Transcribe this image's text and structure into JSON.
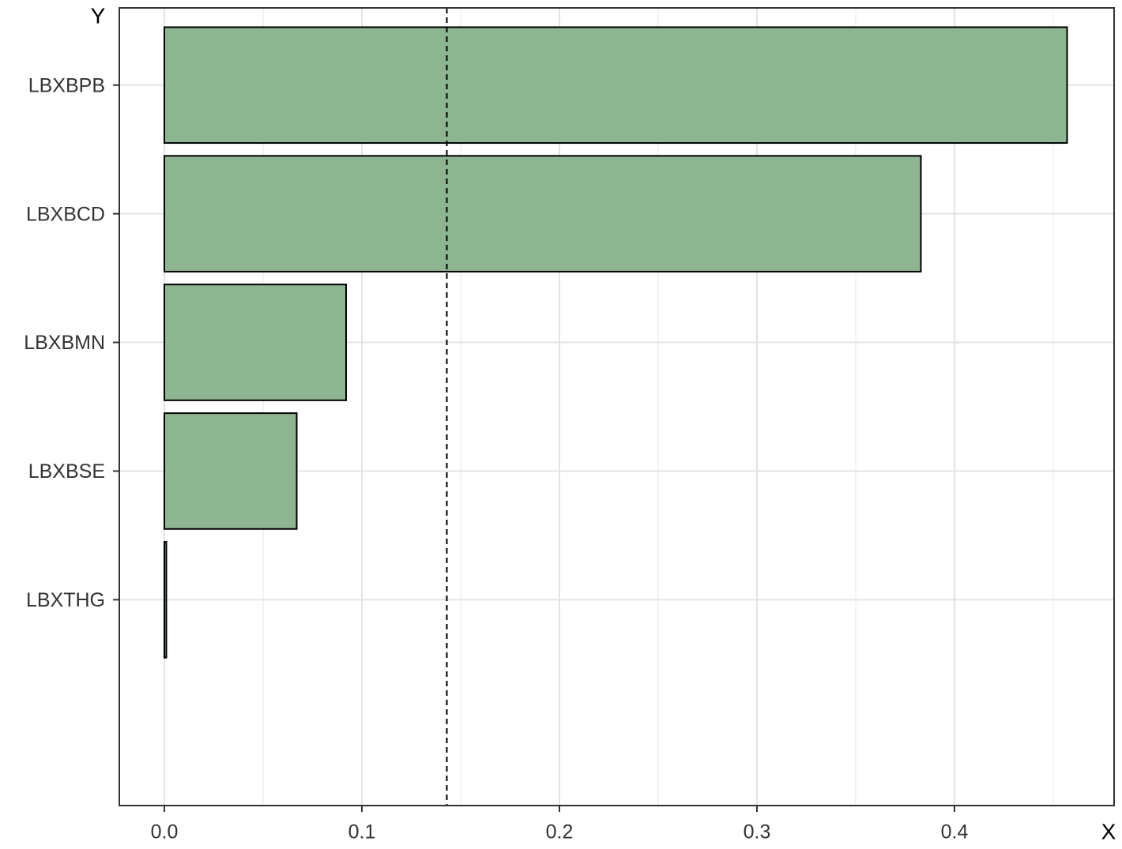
{
  "chart_data": {
    "type": "bar",
    "orientation": "horizontal",
    "x_label": "X",
    "y_label": "Y",
    "categories": [
      "LBXBPB",
      "LBXBCD",
      "LBXBMN",
      "LBXBSE",
      "LBXTHG"
    ],
    "values": [
      0.457,
      0.383,
      0.092,
      0.067,
      0.001
    ],
    "color": "#8db592",
    "xlim": [
      -0.0228,
      0.4808
    ],
    "xticks": [
      {
        "value": 0,
        "label": "0.0"
      },
      0.1,
      0.2,
      0.3,
      0.4
    ],
    "minor_xticks": [
      0.05,
      0.15,
      0.25,
      0.35,
      0.45
    ],
    "reference_line": 0.143,
    "grid": true
  }
}
